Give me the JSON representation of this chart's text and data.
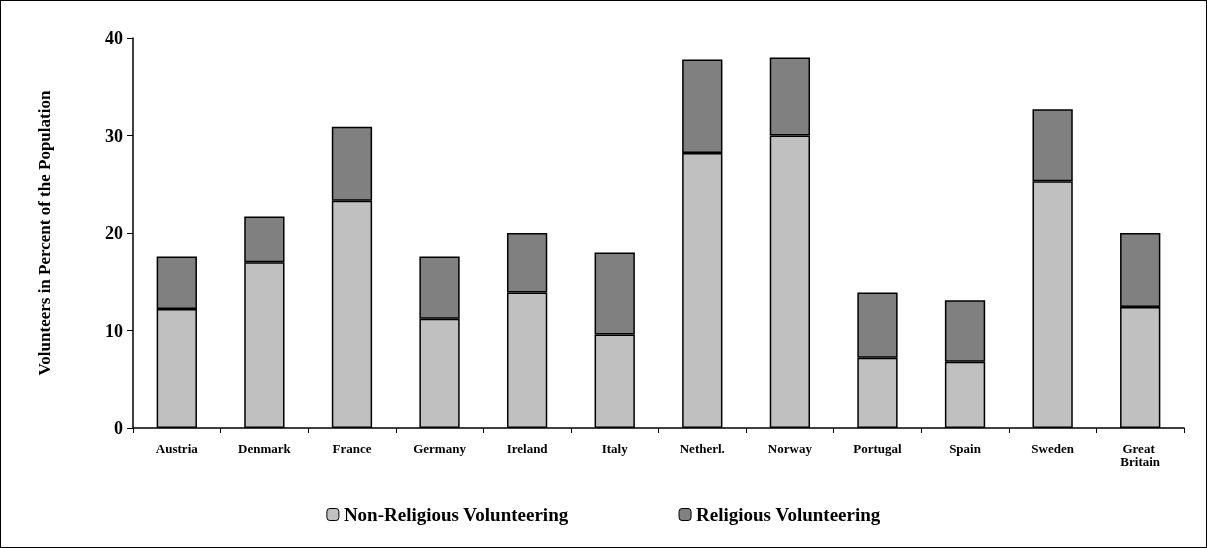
{
  "chart_data": {
    "type": "bar",
    "stacked": true,
    "ylabel": "Volunteers in Percent of the Population",
    "categories": [
      "Austria",
      "Denmark",
      "France",
      "Germany",
      "Ireland",
      "Italy",
      "Netherl.",
      "Norway",
      "Portugal",
      "Spain",
      "Sweden",
      "Great Britain"
    ],
    "series": [
      {
        "name": "Non-Religious Volunteering",
        "color": "#c0c0c0",
        "values": [
          12.2,
          17.0,
          23.3,
          11.2,
          13.9,
          9.6,
          28.2,
          30.0,
          7.2,
          6.8,
          25.3,
          12.4
        ]
      },
      {
        "name": "Religious Volunteering",
        "color": "#808080",
        "values": [
          5.4,
          4.7,
          7.6,
          6.4,
          6.1,
          8.4,
          9.6,
          8.0,
          6.7,
          6.3,
          7.4,
          7.6
        ]
      }
    ],
    "ylim": [
      0,
      40
    ],
    "yticks": [
      0,
      10,
      20,
      30,
      40
    ],
    "grid": false,
    "legend": "bottom"
  }
}
